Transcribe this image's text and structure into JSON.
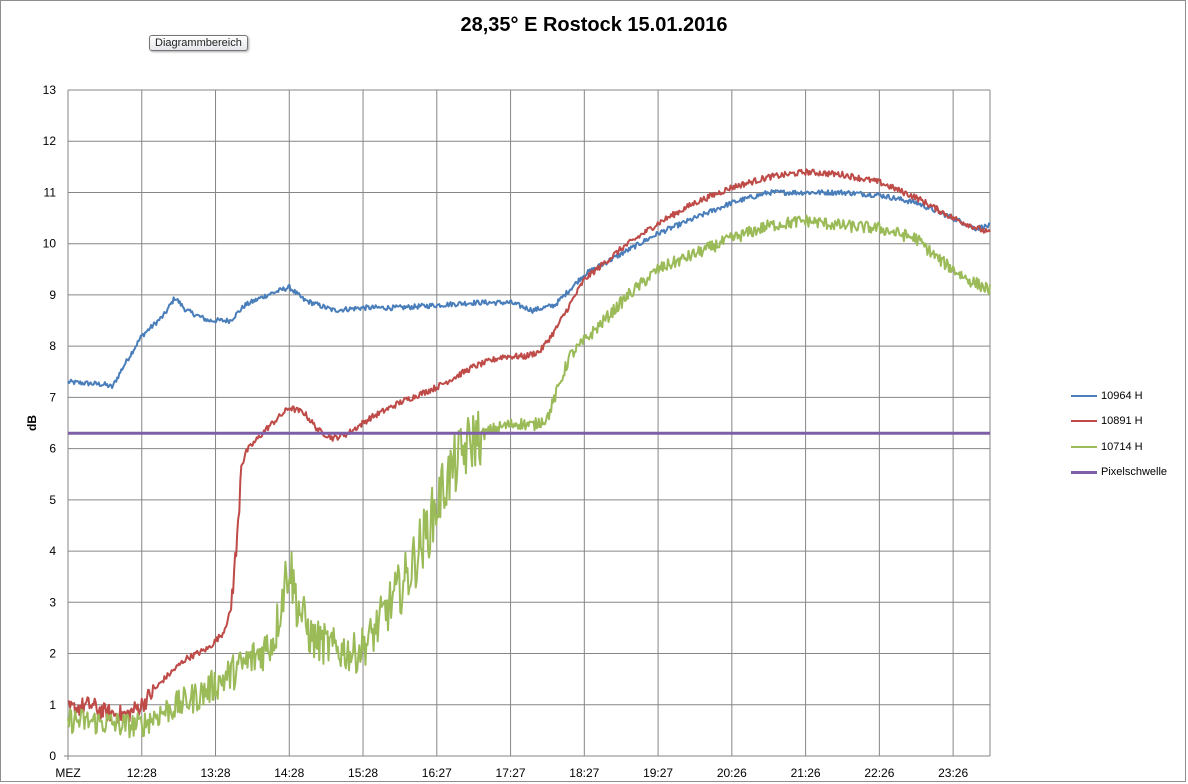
{
  "tooltip": "Diagrammbereich",
  "chart_data": {
    "type": "line",
    "title": "28,35° E Rostock 15.01.2016",
    "ylabel": "dB",
    "xlabel": "",
    "ylim": [
      0,
      13
    ],
    "yticks": [
      "0",
      "1",
      "2",
      "3",
      "4",
      "5",
      "6",
      "7",
      "8",
      "9",
      "10",
      "11",
      "12",
      "13"
    ],
    "x_tick_labels": [
      "MEZ",
      "12:28",
      "13:28",
      "14:28",
      "15:28",
      "16:27",
      "17:27",
      "18:27",
      "19:27",
      "20:26",
      "21:26",
      "22:26",
      "23:26"
    ],
    "grid": true,
    "legend_position": "right",
    "series": [
      {
        "name": "10964 H",
        "color": "#4a7ebb",
        "anchors": [
          [
            0,
            7.3
          ],
          [
            0.5,
            7.25
          ],
          [
            0.6,
            7.2
          ],
          [
            0.75,
            7.6
          ],
          [
            1.0,
            8.2
          ],
          [
            1.3,
            8.6
          ],
          [
            1.45,
            8.95
          ],
          [
            1.6,
            8.7
          ],
          [
            1.9,
            8.5
          ],
          [
            2.2,
            8.5
          ],
          [
            2.4,
            8.8
          ],
          [
            2.7,
            9.0
          ],
          [
            3.0,
            9.15
          ],
          [
            3.2,
            8.9
          ],
          [
            3.6,
            8.7
          ],
          [
            4.0,
            8.75
          ],
          [
            4.5,
            8.75
          ],
          [
            5.0,
            8.8
          ],
          [
            5.5,
            8.85
          ],
          [
            6.0,
            8.85
          ],
          [
            6.3,
            8.7
          ],
          [
            6.6,
            8.8
          ],
          [
            7.0,
            9.4
          ],
          [
            7.5,
            9.8
          ],
          [
            8.0,
            10.2
          ],
          [
            8.5,
            10.5
          ],
          [
            9.0,
            10.8
          ],
          [
            9.5,
            11.0
          ],
          [
            10.0,
            11.0
          ],
          [
            10.5,
            11.0
          ],
          [
            11.0,
            10.95
          ],
          [
            11.5,
            10.8
          ],
          [
            12.0,
            10.5
          ],
          [
            12.3,
            10.3
          ],
          [
            12.5,
            10.35
          ]
        ],
        "noise": 0.05
      },
      {
        "name": "10891 H",
        "color": "#be4b48",
        "anchors": [
          [
            0,
            0.9
          ],
          [
            0.3,
            1.0
          ],
          [
            0.5,
            0.85
          ],
          [
            0.8,
            0.8
          ],
          [
            1.0,
            1.0
          ],
          [
            1.3,
            1.5
          ],
          [
            1.6,
            1.9
          ],
          [
            1.9,
            2.1
          ],
          [
            2.1,
            2.4
          ],
          [
            2.2,
            2.8
          ],
          [
            2.3,
            4.3
          ],
          [
            2.35,
            5.8
          ],
          [
            2.45,
            6.0
          ],
          [
            2.7,
            6.4
          ],
          [
            3.0,
            6.8
          ],
          [
            3.2,
            6.7
          ],
          [
            3.4,
            6.35
          ],
          [
            3.6,
            6.2
          ],
          [
            3.8,
            6.3
          ],
          [
            4.1,
            6.6
          ],
          [
            4.5,
            6.9
          ],
          [
            5.0,
            7.2
          ],
          [
            5.5,
            7.6
          ],
          [
            5.9,
            7.8
          ],
          [
            6.2,
            7.8
          ],
          [
            6.4,
            7.9
          ],
          [
            6.6,
            8.3
          ],
          [
            7.0,
            9.3
          ],
          [
            7.5,
            9.9
          ],
          [
            8.0,
            10.4
          ],
          [
            8.5,
            10.8
          ],
          [
            9.0,
            11.1
          ],
          [
            9.5,
            11.3
          ],
          [
            10.0,
            11.4
          ],
          [
            10.5,
            11.35
          ],
          [
            11.0,
            11.2
          ],
          [
            11.5,
            10.9
          ],
          [
            12.0,
            10.5
          ],
          [
            12.5,
            10.2
          ]
        ],
        "noise": 0.06
      },
      {
        "name": "10714 H",
        "color": "#9bbb59",
        "anchors": [
          [
            0,
            0.7
          ],
          [
            0.5,
            0.65
          ],
          [
            0.8,
            0.6
          ],
          [
            1.0,
            0.6
          ],
          [
            1.2,
            0.8
          ],
          [
            1.5,
            1.0
          ],
          [
            1.8,
            1.2
          ],
          [
            2.0,
            1.4
          ],
          [
            2.3,
            1.7
          ],
          [
            2.6,
            2.0
          ],
          [
            2.8,
            2.3
          ],
          [
            2.9,
            3.1
          ],
          [
            3.0,
            3.8
          ],
          [
            3.1,
            3.0
          ],
          [
            3.3,
            2.3
          ],
          [
            3.6,
            2.1
          ],
          [
            3.9,
            2.0
          ],
          [
            4.1,
            2.3
          ],
          [
            4.3,
            2.8
          ],
          [
            4.6,
            3.5
          ],
          [
            4.9,
            4.5
          ],
          [
            5.1,
            5.3
          ],
          [
            5.3,
            5.8
          ],
          [
            5.5,
            6.2
          ],
          [
            5.8,
            6.4
          ],
          [
            6.1,
            6.5
          ],
          [
            6.3,
            6.45
          ],
          [
            6.5,
            6.6
          ],
          [
            6.8,
            7.8
          ],
          [
            7.2,
            8.4
          ],
          [
            7.6,
            9.0
          ],
          [
            8.0,
            9.5
          ],
          [
            8.5,
            9.8
          ],
          [
            9.0,
            10.1
          ],
          [
            9.5,
            10.35
          ],
          [
            10.0,
            10.45
          ],
          [
            10.5,
            10.35
          ],
          [
            11.0,
            10.3
          ],
          [
            11.5,
            10.1
          ],
          [
            11.8,
            9.7
          ],
          [
            12.2,
            9.3
          ],
          [
            12.5,
            9.1
          ]
        ],
        "noise": 0.12
      },
      {
        "name": "Pixelschwelle",
        "color": "#7f5ea8",
        "anchors": [
          [
            0,
            6.3
          ],
          [
            12.5,
            6.3
          ]
        ],
        "noise": 0
      }
    ]
  }
}
